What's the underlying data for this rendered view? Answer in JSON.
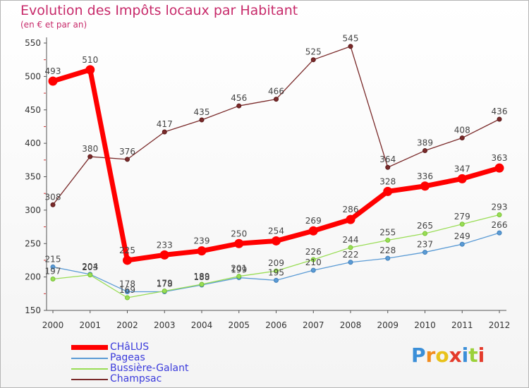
{
  "header": {
    "title": "Evolution des Impôts locaux par Habitant",
    "subtitle": "(en € et par an)"
  },
  "logo": {
    "text": "Proxiti"
  },
  "colors": {
    "CHâLUS": "#ff0000",
    "Pageas": "#5b9bd5",
    "Bussière-Galant": "#99dd55",
    "Champsac": "#7a2a2a",
    "title": "#c72a6a",
    "legend_text": "#3b3bdc"
  },
  "chart_data": {
    "type": "line",
    "title": "Evolution des Impôts locaux par Habitant",
    "subtitle": "(en € et par an)",
    "categories": [
      "2000",
      "2001",
      "2002",
      "2003",
      "2004",
      "2005",
      "2006",
      "2007",
      "2008",
      "2009",
      "2010",
      "2011",
      "2012"
    ],
    "ylim": [
      150,
      550
    ],
    "yticks": [
      150,
      200,
      250,
      300,
      350,
      400,
      450,
      500,
      550
    ],
    "grid": false,
    "legend_position": "bottom-left",
    "series": [
      {
        "name": "CHâLUS",
        "values": [
          493,
          510,
          225,
          233,
          239,
          250,
          254,
          269,
          286,
          328,
          336,
          347,
          363
        ]
      },
      {
        "name": "Pageas",
        "values": [
          215,
          204,
          178,
          178,
          188,
          199,
          195,
          210,
          222,
          228,
          237,
          249,
          266
        ]
      },
      {
        "name": "Bussière-Galant",
        "values": [
          197,
          203,
          169,
          179,
          189,
          201,
          209,
          226,
          244,
          255,
          265,
          279,
          293
        ]
      },
      {
        "name": "Champsac",
        "values": [
          308,
          380,
          376,
          417,
          435,
          456,
          466,
          525,
          545,
          364,
          389,
          408,
          436
        ]
      }
    ]
  }
}
